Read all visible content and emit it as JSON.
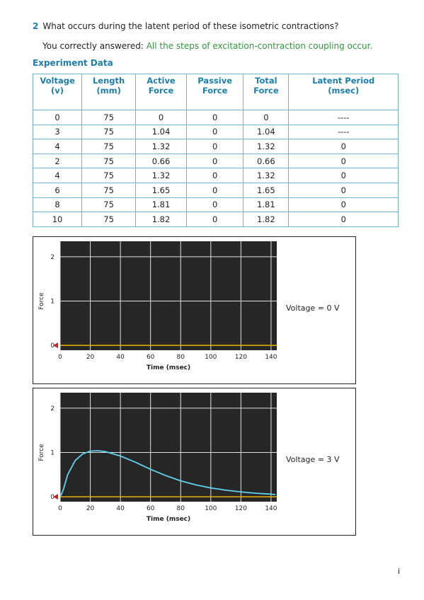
{
  "question": {
    "number": "2",
    "text": "What occurs during the latent period of these isometric contractions?"
  },
  "answer": {
    "label": "You correctly answered:",
    "text": "All the steps of excitation-contraction coupling occur."
  },
  "table": {
    "title": "Experiment Data",
    "columns": [
      "Voltage (v)",
      "Length (mm)",
      "Active Force",
      "Passive Force",
      "Total Force",
      "Latent Period (msec)"
    ],
    "rows": [
      [
        0,
        75,
        0,
        0,
        0,
        "----"
      ],
      [
        3,
        75,
        1.04,
        0,
        1.04,
        "----"
      ],
      [
        4,
        75,
        1.32,
        0,
        1.32,
        0
      ],
      [
        2,
        75,
        0.66,
        0,
        0.66,
        0
      ],
      [
        4,
        75,
        1.32,
        0,
        1.32,
        0
      ],
      [
        6,
        75,
        1.65,
        0,
        1.65,
        0
      ],
      [
        8,
        75,
        1.81,
        0,
        1.81,
        0
      ],
      [
        10,
        75,
        1.82,
        0,
        1.82,
        0
      ]
    ]
  },
  "graphs": [
    {
      "type": "line",
      "x_label": "Time (msec)",
      "y_label": "Force",
      "annotation": "Voltage = 0 V",
      "xlim": [
        0,
        143.8
      ],
      "ylim": [
        -0.11,
        2.35
      ],
      "xticks": [
        0,
        20,
        40,
        60,
        80,
        100,
        120,
        140
      ],
      "yticks": [
        0,
        1,
        2
      ],
      "baseline": 0,
      "baseline_color": "#e8b000",
      "series": []
    },
    {
      "type": "line",
      "x_label": "Time (msec)",
      "y_label": "Force",
      "annotation": "Voltage = 3 V",
      "xlim": [
        0,
        143.8
      ],
      "ylim": [
        -0.11,
        2.35
      ],
      "xticks": [
        0,
        20,
        40,
        60,
        80,
        100,
        120,
        140
      ],
      "yticks": [
        0,
        1,
        2
      ],
      "baseline": 0,
      "baseline_color": "#e8b000",
      "series": [
        {
          "color": "#5fd3f0",
          "x": [
            0,
            2,
            5,
            10,
            15,
            20,
            25,
            30,
            40,
            50,
            60,
            70,
            80,
            90,
            100,
            110,
            120,
            130,
            140,
            143
          ],
          "values": [
            0,
            0.15,
            0.5,
            0.82,
            0.97,
            1.03,
            1.04,
            1.02,
            0.92,
            0.78,
            0.62,
            0.48,
            0.36,
            0.27,
            0.2,
            0.15,
            0.11,
            0.08,
            0.06,
            0.05
          ]
        }
      ]
    }
  ],
  "page_number": "i"
}
